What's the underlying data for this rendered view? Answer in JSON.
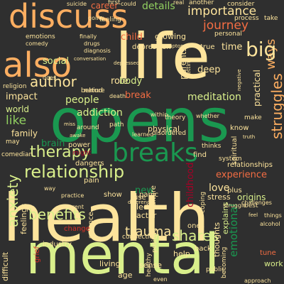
{
  "palette": {
    "background": "#2f2f2f",
    "cream": "#fde49c",
    "pale_green": "#d9ef8b",
    "green": "#91cf60",
    "dark_green": "#1a9850",
    "orange": "#f46d43",
    "light_orange": "#fdae61",
    "red": "#d73027",
    "dark_red": "#a50026"
  },
  "words": [
    {
      "text": "health"
    },
    {
      "text": "mental"
    },
    {
      "text": "opens"
    },
    {
      "text": "life"
    },
    {
      "text": "also"
    },
    {
      "text": "discuss"
    },
    {
      "text": "breaks"
    },
    {
      "text": "relationship"
    },
    {
      "text": "therapy"
    },
    {
      "text": "anxiety"
    },
    {
      "text": "benefits"
    },
    {
      "text": "author"
    },
    {
      "text": "journey"
    },
    {
      "text": "importance"
    },
    {
      "text": "struggles"
    },
    {
      "text": "ways"
    },
    {
      "text": "details"
    },
    {
      "text": "career"
    },
    {
      "text": "big"
    },
    {
      "text": "shares"
    },
    {
      "text": "trauma"
    },
    {
      "text": "emotional"
    },
    {
      "text": "experience"
    },
    {
      "text": "people"
    },
    {
      "text": "addiction"
    },
    {
      "text": "meditation"
    },
    {
      "text": "like"
    },
    {
      "text": "social"
    },
    {
      "text": "child"
    },
    {
      "text": "role"
    },
    {
      "text": "impact"
    },
    {
      "text": "world"
    },
    {
      "text": "family"
    },
    {
      "text": "brain"
    },
    {
      "text": "physical"
    },
    {
      "text": "new"
    },
    {
      "text": "love"
    },
    {
      "text": "time"
    },
    {
      "text": "break"
    },
    {
      "text": "body"
    },
    {
      "text": "growing"
    },
    {
      "text": "depression"
    },
    {
      "text": "practical"
    },
    {
      "text": "deep"
    },
    {
      "text": "parents"
    },
    {
      "text": "childhood"
    },
    {
      "text": "relationships"
    },
    {
      "text": "stress"
    },
    {
      "text": "plus"
    },
    {
      "text": "origins"
    },
    {
      "text": "explains"
    },
    {
      "text": "thoughts"
    },
    {
      "text": "help"
    },
    {
      "text": "back"
    },
    {
      "text": "work"
    },
    {
      "text": "industry"
    },
    {
      "text": "feelings"
    },
    {
      "text": "difficult"
    },
    {
      "text": "comedian"
    },
    {
      "text": "dangers"
    },
    {
      "text": "power"
    },
    {
      "text": "might"
    },
    {
      "text": "pain"
    },
    {
      "text": "show"
    },
    {
      "text": "panic"
    },
    {
      "text": "led"
    },
    {
      "text": "actor"
    },
    {
      "text": "culture"
    },
    {
      "text": "use"
    },
    {
      "text": "living"
    },
    {
      "text": "science"
    },
    {
      "text": "change"
    },
    {
      "text": "grief"
    },
    {
      "text": "sense"
    },
    {
      "text": "age"
    },
    {
      "text": "ones"
    },
    {
      "text": "find"
    },
    {
      "text": "know"
    },
    {
      "text": "spiritual"
    },
    {
      "text": "true"
    },
    {
      "text": "personal"
    },
    {
      "text": "another"
    },
    {
      "text": "consider"
    },
    {
      "text": "could"
    },
    {
      "text": "feeling"
    },
    {
      "text": "first"
    },
    {
      "text": "real"
    },
    {
      "text": "process"
    },
    {
      "text": "take"
    },
    {
      "text": "emotions"
    },
    {
      "text": "comedy"
    },
    {
      "text": "religion"
    },
    {
      "text": "behind"
    },
    {
      "text": "nature"
    },
    {
      "text": "theory"
    },
    {
      "text": "disordered"
    },
    {
      "text": "path"
    },
    {
      "text": "around"
    },
    {
      "text": "thinks"
    },
    {
      "text": "positive"
    },
    {
      "text": "healthy"
    },
    {
      "text": "public"
    },
    {
      "text": "coping"
    },
    {
      "text": "becoming"
    },
    {
      "text": "practice"
    },
    {
      "text": "connection"
    },
    {
      "text": "may"
    },
    {
      "text": "system"
    },
    {
      "text": "challenges"
    },
    {
      "text": "alcohol"
    },
    {
      "text": "things"
    },
    {
      "text": "approach"
    },
    {
      "text": "going"
    },
    {
      "text": "finally"
    },
    {
      "text": "drugs"
    },
    {
      "text": "diagnosis"
    },
    {
      "text": "does"
    },
    {
      "text": "make"
    },
    {
      "text": "whether"
    },
    {
      "text": "struggle"
    },
    {
      "text": "death"
    },
    {
      "text": "within"
    },
    {
      "text": "learned"
    },
    {
      "text": "getting"
    },
    {
      "text": "best"
    },
    {
      "text": "differences"
    },
    {
      "text": "miss"
    },
    {
      "text": "awake"
    },
    {
      "text": "even"
    },
    {
      "text": "tune"
    },
    {
      "text": "different"
    },
    {
      "text": "suicide"
    },
    {
      "text": "symptoms"
    },
    {
      "text": "conversation"
    },
    {
      "text": "depressed"
    },
    {
      "text": "negative"
    },
    {
      "text": "truth"
    },
    {
      "text": "feel"
    },
    {
      "text": "way"
    }
  ]
}
